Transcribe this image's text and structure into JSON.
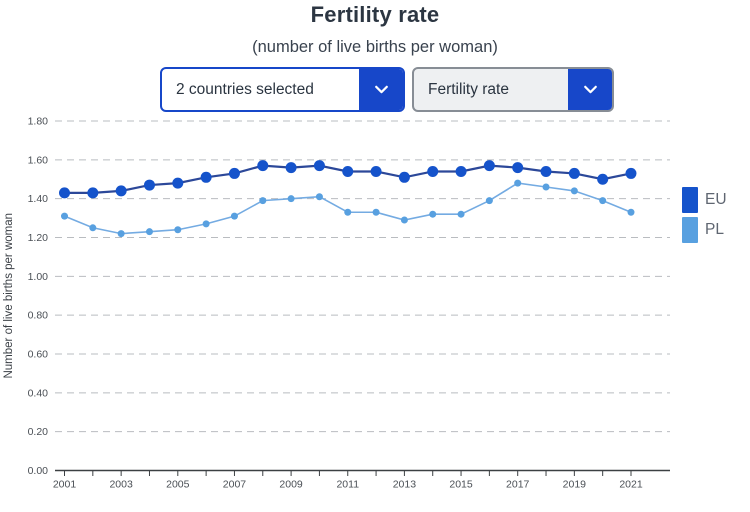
{
  "header": {
    "title": "Fertility rate",
    "subtitle": "(number of live births per woman)"
  },
  "controls": {
    "countries_dropdown": {
      "value": "2 countries selected",
      "icon": "chevron-down"
    },
    "indicator_dropdown": {
      "value": "Fertility rate",
      "icon": "chevron-down"
    }
  },
  "colors": {
    "accent_blue": "#1747c9",
    "eu_marker": "#1553cb",
    "eu_line": "#2c4899",
    "pl_marker": "#58a0e0",
    "pl_line": "#74abe2"
  },
  "chart_data": {
    "type": "line",
    "title": "Fertility rate",
    "subtitle": "(number of live births per woman)",
    "xlabel": "",
    "ylabel": "Number of live births per woman",
    "x": [
      2001,
      2002,
      2003,
      2004,
      2005,
      2006,
      2007,
      2008,
      2009,
      2010,
      2011,
      2012,
      2013,
      2014,
      2015,
      2016,
      2017,
      2018,
      2019,
      2020,
      2021
    ],
    "xtick_labels": [
      2001,
      2003,
      2005,
      2007,
      2009,
      2011,
      2013,
      2015,
      2017,
      2019,
      2021
    ],
    "series": [
      {
        "name": "EU",
        "color": "#1553cb",
        "line_color": "#2c4899",
        "values": [
          1.43,
          1.43,
          1.44,
          1.47,
          1.48,
          1.51,
          1.53,
          1.57,
          1.56,
          1.57,
          1.54,
          1.54,
          1.51,
          1.54,
          1.54,
          1.57,
          1.56,
          1.54,
          1.53,
          1.5,
          1.53
        ]
      },
      {
        "name": "PL",
        "color": "#58a0e0",
        "line_color": "#74abe2",
        "values": [
          1.31,
          1.25,
          1.22,
          1.23,
          1.24,
          1.27,
          1.31,
          1.39,
          1.4,
          1.41,
          1.33,
          1.33,
          1.29,
          1.32,
          1.32,
          1.39,
          1.48,
          1.46,
          1.44,
          1.39,
          1.33
        ]
      }
    ],
    "ylim": [
      0,
      1.8
    ],
    "ytick_step": 0.2,
    "grid": "horizontal-dashed",
    "legend_position": "right"
  }
}
